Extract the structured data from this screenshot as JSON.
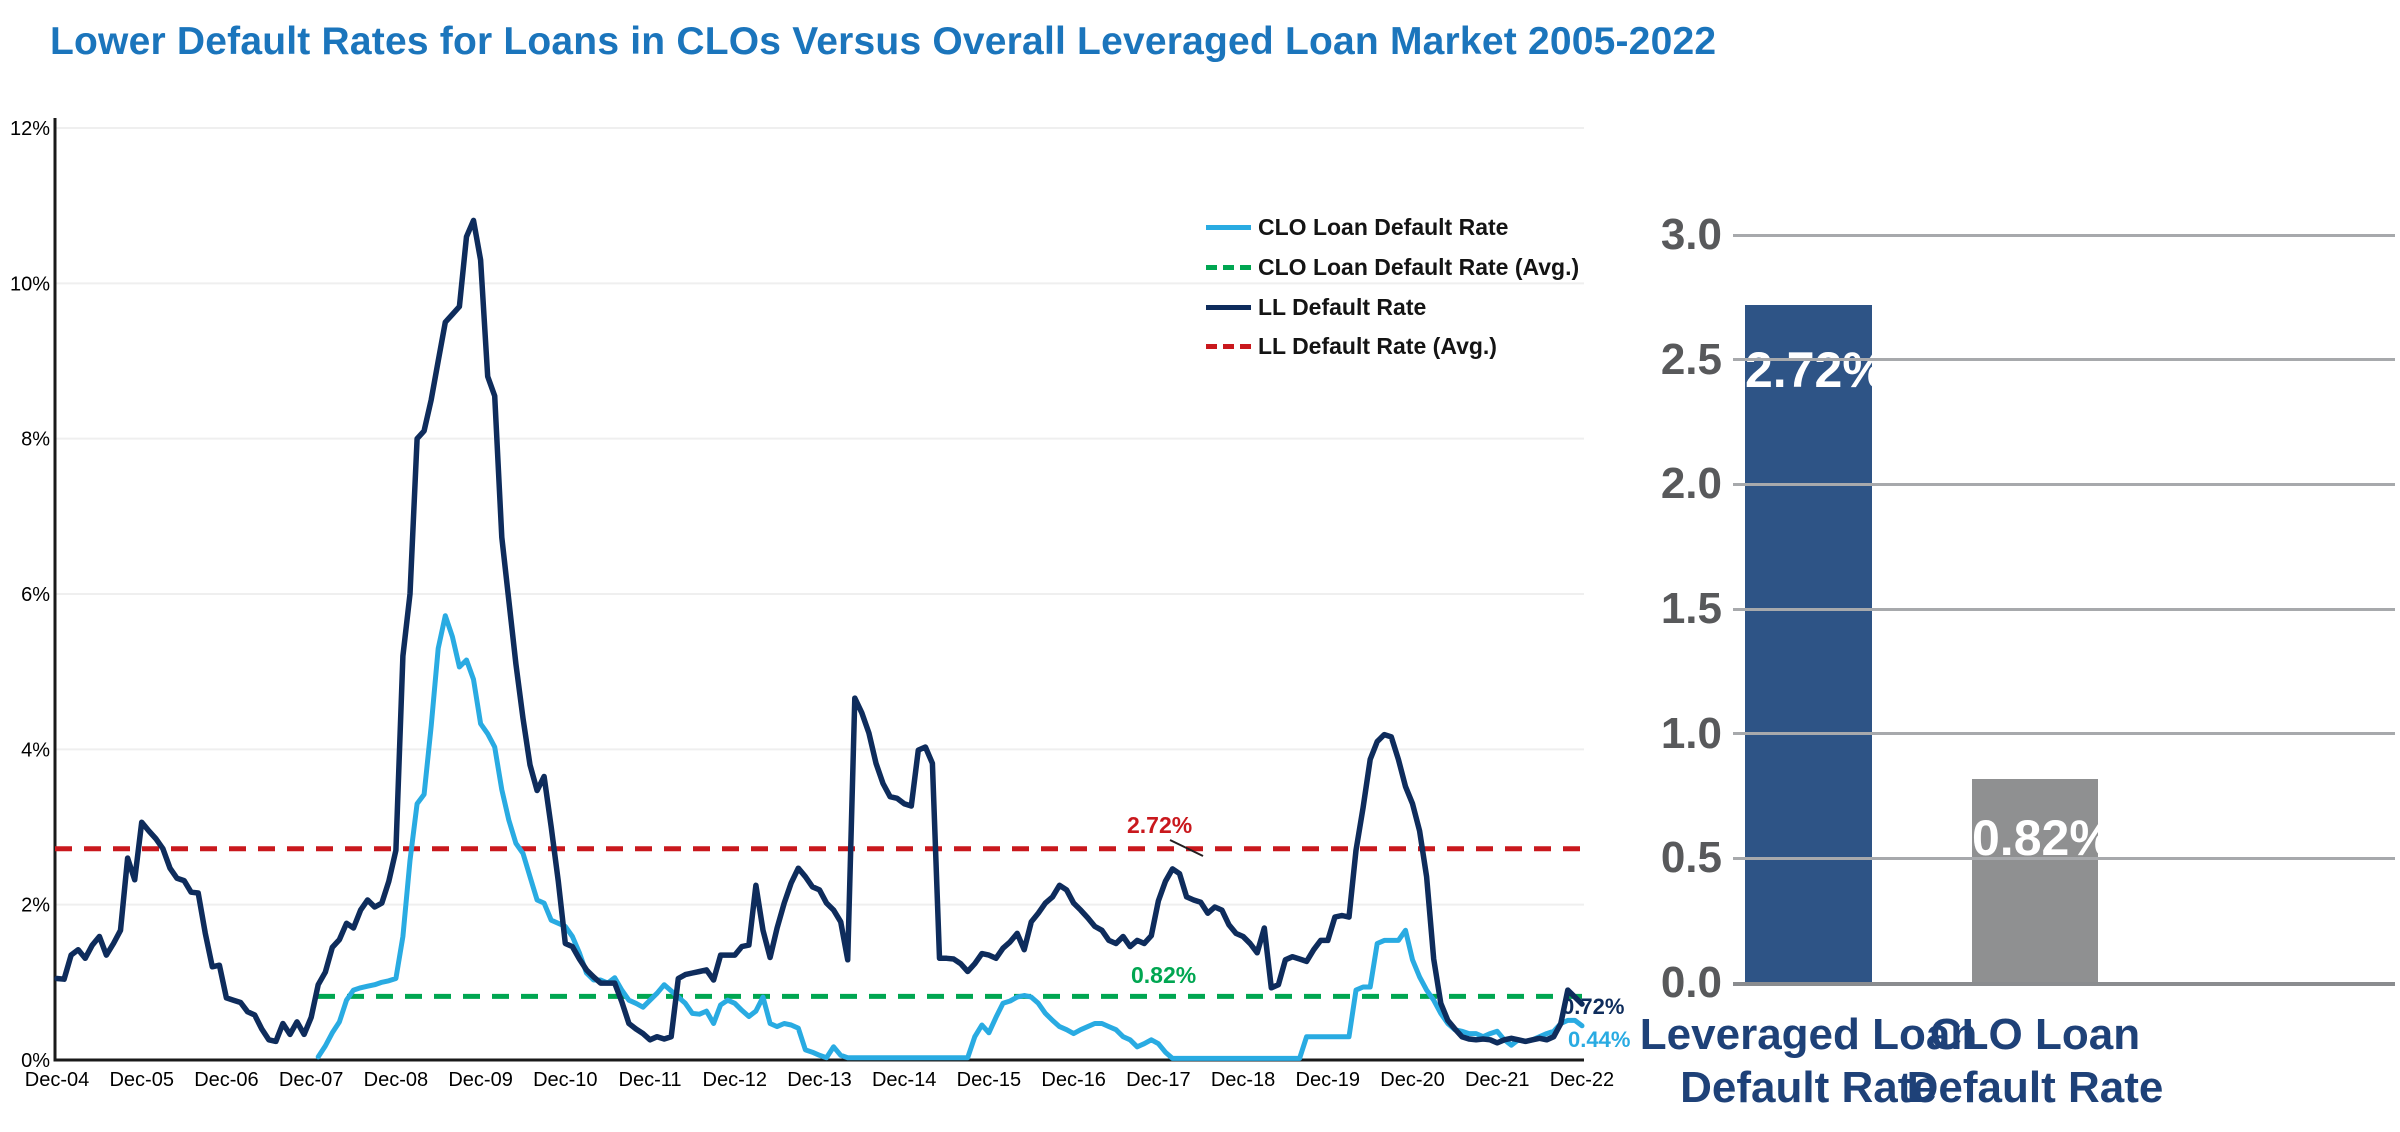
{
  "title": "Lower Default Rates for Loans in CLOs Versus Overall Leveraged Loan Market 2005-2022",
  "colors": {
    "title_blue": "#1b75bc",
    "clo_line": "#29abe2",
    "clo_avg_green": "#00a651",
    "ll_line": "#0e2c5c",
    "ll_avg_red": "#c9181d",
    "bar_navy": "#2e5486",
    "bar_gray": "#8f9091",
    "line_grid": "#efefef",
    "bar_grid": "#a7a9ac",
    "axis_black": "#1a1a1a",
    "bar_tick_gray": "#58595b",
    "bar_label_navy": "#1e4178"
  },
  "chart_data": [
    {
      "type": "line",
      "title": "CLO loan default rate vs leveraged loan default rate, monthly, Dec-04 to Dec-22",
      "frequency": "monthly",
      "x_start": "Dec-04",
      "x_tick_labels": [
        "Dec-04",
        "Dec-05",
        "Dec-06",
        "Dec-07",
        "Dec-08",
        "Dec-09",
        "Dec-10",
        "Dec-11",
        "Dec-12",
        "Dec-13",
        "Dec-14",
        "Dec-15",
        "Dec-16",
        "Dec-17",
        "Dec-18",
        "Dec-19",
        "Dec-20",
        "Dec-21",
        "Dec-22"
      ],
      "y_tick_labels": [
        "0%",
        "2%",
        "4%",
        "6%",
        "8%",
        "10%",
        "12%"
      ],
      "ylim": [
        0,
        12
      ],
      "grid": "horizontal",
      "legend_position": "inside-upper-right",
      "series": [
        {
          "name": "CLO Loan Default Rate",
          "color": "#29abe2",
          "style": "solid",
          "values": [
            null,
            null,
            null,
            null,
            null,
            null,
            null,
            null,
            null,
            null,
            null,
            null,
            null,
            null,
            null,
            null,
            null,
            null,
            null,
            null,
            null,
            null,
            null,
            null,
            null,
            null,
            null,
            null,
            null,
            null,
            null,
            null,
            null,
            null,
            null,
            null,
            null,
            0.04,
            0.18,
            0.35,
            0.49,
            0.77,
            0.9,
            0.93,
            0.95,
            0.97,
            1.0,
            1.02,
            1.05,
            1.59,
            2.57,
            3.3,
            3.42,
            4.3,
            5.3,
            5.72,
            5.45,
            5.06,
            5.15,
            4.9,
            4.33,
            4.2,
            4.03,
            3.48,
            3.09,
            2.79,
            2.66,
            2.36,
            2.06,
            2.02,
            1.8,
            1.76,
            1.72,
            1.59,
            1.38,
            1.12,
            1.03,
            1.03,
            0.99,
            1.06,
            0.9,
            0.77,
            0.73,
            0.68,
            0.77,
            0.86,
            0.97,
            0.89,
            0.81,
            0.73,
            0.6,
            0.59,
            0.63,
            0.47,
            0.71,
            0.77,
            0.73,
            0.64,
            0.56,
            0.63,
            0.81,
            0.47,
            0.43,
            0.47,
            0.45,
            0.41,
            0.13,
            0.1,
            0.06,
            0.03,
            0.17,
            0.06,
            0.03,
            0.03,
            0.03,
            0.03,
            0.03,
            0.03,
            0.03,
            0.03,
            0.03,
            0.03,
            0.03,
            0.03,
            0.03,
            0.03,
            0.03,
            0.03,
            0.03,
            0.03,
            0.3,
            0.45,
            0.35,
            0.55,
            0.73,
            0.76,
            0.81,
            0.83,
            0.81,
            0.73,
            0.6,
            0.51,
            0.43,
            0.39,
            0.34,
            0.39,
            0.43,
            0.47,
            0.47,
            0.43,
            0.39,
            0.3,
            0.26,
            0.17,
            0.21,
            0.26,
            0.21,
            0.1,
            0.02,
            0.02,
            0.02,
            0.02,
            0.02,
            0.02,
            0.02,
            0.02,
            0.02,
            0.02,
            0.02,
            0.02,
            0.02,
            0.02,
            0.02,
            0.02,
            0.02,
            0.02,
            0.02,
            0.3,
            0.3,
            0.3,
            0.3,
            0.3,
            0.3,
            0.3,
            0.9,
            0.94,
            0.94,
            1.5,
            1.54,
            1.54,
            1.54,
            1.67,
            1.29,
            1.07,
            0.9,
            0.77,
            0.6,
            0.47,
            0.39,
            0.37,
            0.34,
            0.34,
            0.3,
            0.34,
            0.37,
            0.26,
            0.19,
            0.26,
            0.24,
            0.26,
            0.3,
            0.34,
            0.37,
            0.47,
            0.51,
            0.51,
            0.44
          ]
        },
        {
          "name": "CLO Loan Default Rate (Avg.)",
          "color": "#00a651",
          "style": "dashed",
          "value": 0.82
        },
        {
          "name": "LL Default Rate",
          "color": "#0e2c5c",
          "style": "solid",
          "values": [
            1.05,
            1.04,
            1.35,
            1.42,
            1.31,
            1.48,
            1.59,
            1.35,
            1.5,
            1.67,
            2.6,
            2.32,
            3.06,
            2.95,
            2.85,
            2.72,
            2.47,
            2.34,
            2.31,
            2.16,
            2.15,
            1.63,
            1.2,
            1.22,
            0.8,
            0.77,
            0.74,
            0.62,
            0.58,
            0.4,
            0.26,
            0.24,
            0.47,
            0.33,
            0.49,
            0.33,
            0.55,
            0.97,
            1.13,
            1.45,
            1.55,
            1.76,
            1.7,
            1.93,
            2.06,
            1.97,
            2.02,
            2.3,
            2.7,
            5.2,
            6.0,
            8.0,
            8.1,
            8.5,
            9.0,
            9.5,
            9.6,
            9.7,
            10.6,
            10.81,
            10.3,
            8.8,
            8.55,
            6.73,
            5.92,
            5.1,
            4.4,
            3.8,
            3.47,
            3.65,
            3.0,
            2.3,
            1.5,
            1.46,
            1.3,
            1.16,
            1.07,
            0.99,
            0.99,
            0.99,
            0.75,
            0.47,
            0.4,
            0.34,
            0.26,
            0.3,
            0.27,
            0.3,
            1.05,
            1.1,
            1.12,
            1.14,
            1.16,
            1.03,
            1.35,
            1.35,
            1.35,
            1.46,
            1.48,
            2.25,
            1.67,
            1.32,
            1.7,
            2.02,
            2.28,
            2.47,
            2.36,
            2.23,
            2.19,
            2.02,
            1.93,
            1.78,
            1.29,
            4.66,
            4.47,
            4.21,
            3.82,
            3.56,
            3.39,
            3.37,
            3.3,
            3.27,
            3.99,
            4.03,
            3.82,
            1.31,
            1.31,
            1.3,
            1.24,
            1.14,
            1.24,
            1.37,
            1.35,
            1.31,
            1.44,
            1.52,
            1.63,
            1.42,
            1.78,
            1.89,
            2.02,
            2.1,
            2.25,
            2.19,
            2.02,
            1.93,
            1.83,
            1.72,
            1.67,
            1.54,
            1.5,
            1.59,
            1.46,
            1.54,
            1.5,
            1.6,
            2.05,
            2.3,
            2.46,
            2.4,
            2.1,
            2.06,
            2.03,
            1.89,
            1.97,
            1.93,
            1.74,
            1.63,
            1.59,
            1.5,
            1.38,
            1.7,
            0.93,
            0.97,
            1.29,
            1.33,
            1.3,
            1.27,
            1.42,
            1.54,
            1.54,
            1.84,
            1.86,
            1.84,
            2.7,
            3.25,
            3.87,
            4.1,
            4.19,
            4.16,
            3.87,
            3.52,
            3.3,
            2.95,
            2.36,
            1.3,
            0.73,
            0.51,
            0.4,
            0.3,
            0.27,
            0.26,
            0.27,
            0.26,
            0.22,
            0.26,
            0.28,
            0.26,
            0.24,
            0.26,
            0.28,
            0.26,
            0.3,
            0.47,
            0.9,
            0.81,
            0.72
          ]
        },
        {
          "name": "LL Default Rate (Avg.)",
          "color": "#c9181d",
          "style": "dashed",
          "value": 2.72
        }
      ],
      "annotations": [
        {
          "text": "2.72%",
          "color": "#c9181d",
          "refers_to": "LL Default Rate (Avg.)"
        },
        {
          "text": "0.82%",
          "color": "#00a651",
          "refers_to": "CLO Loan Default Rate (Avg.)"
        },
        {
          "text": "0.72%",
          "color": "#0e2c5c",
          "refers_to": "LL Default Rate last value"
        },
        {
          "text": "0.44%",
          "color": "#29abe2",
          "refers_to": "CLO Loan Default Rate last value"
        }
      ]
    },
    {
      "type": "bar",
      "categories": [
        "Leveraged Loan Default Rate",
        "CLO Loan Default Rate"
      ],
      "categories_lines": [
        [
          "Leveraged Loan",
          "Default Rate"
        ],
        [
          "CLO Loan",
          "Default Rate"
        ]
      ],
      "values": [
        2.72,
        0.82
      ],
      "bar_labels": [
        "2.72%",
        "0.82%"
      ],
      "bar_colors": [
        "#2e5486",
        "#8f9091"
      ],
      "y_tick_labels": [
        "3.0",
        "2.5",
        "2.0",
        "1.5",
        "1.0",
        "0.5",
        "0.0"
      ],
      "ylim": [
        0,
        3.0
      ],
      "grid": "horizontal"
    }
  ]
}
